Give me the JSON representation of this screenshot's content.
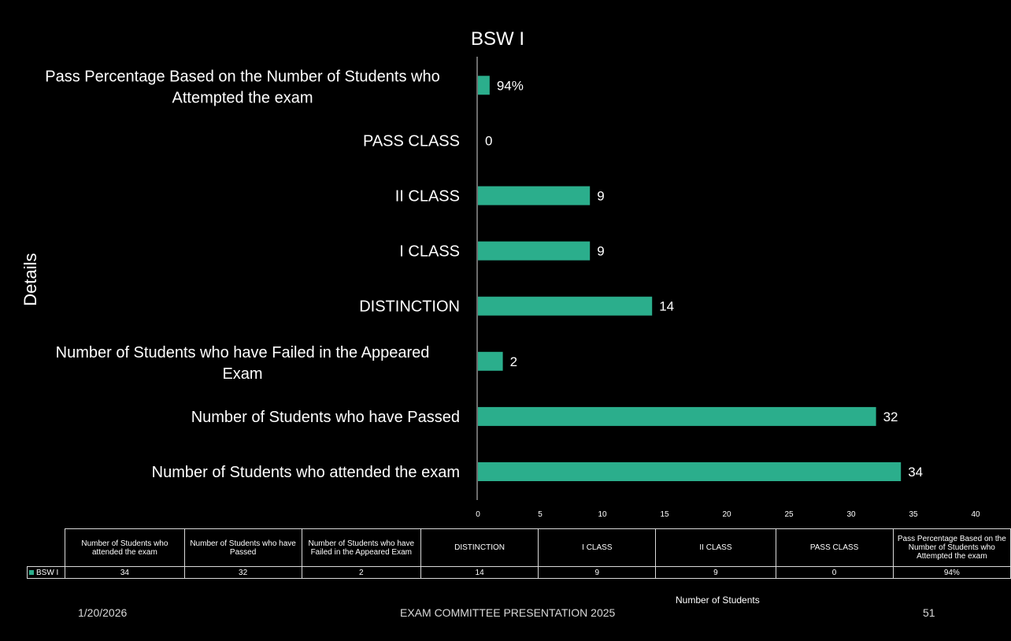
{
  "chart_data": {
    "type": "bar",
    "orientation": "horizontal",
    "title": "BSW I",
    "xlabel": "Number of Students",
    "ylabel": "Details",
    "xlim": [
      0,
      40
    ],
    "xticks": [
      0,
      5,
      10,
      15,
      20,
      25,
      30,
      35,
      40
    ],
    "bar_color": "#2bae8c",
    "categories": [
      "Number of Students who attended the exam",
      "Number of Students who have Passed",
      "Number of Students who have Failed in the Appeared Exam",
      "DISTINCTION",
      "I CLASS",
      "II CLASS",
      "PASS CLASS",
      "Pass Percentage Based on the Number of Students who Attempted the exam"
    ],
    "series": [
      {
        "name": "BSW I",
        "values": [
          34,
          32,
          2,
          14,
          9,
          9,
          0,
          0.94
        ],
        "labels": [
          "34",
          "32",
          "2",
          "14",
          "9",
          "9",
          "0",
          "94%"
        ]
      }
    ],
    "grid": false,
    "legend": "data-table"
  },
  "footer": {
    "date": "1/20/2026",
    "presentation": "EXAM COMMITTEE PRESENTATION 2025",
    "page": "51"
  }
}
